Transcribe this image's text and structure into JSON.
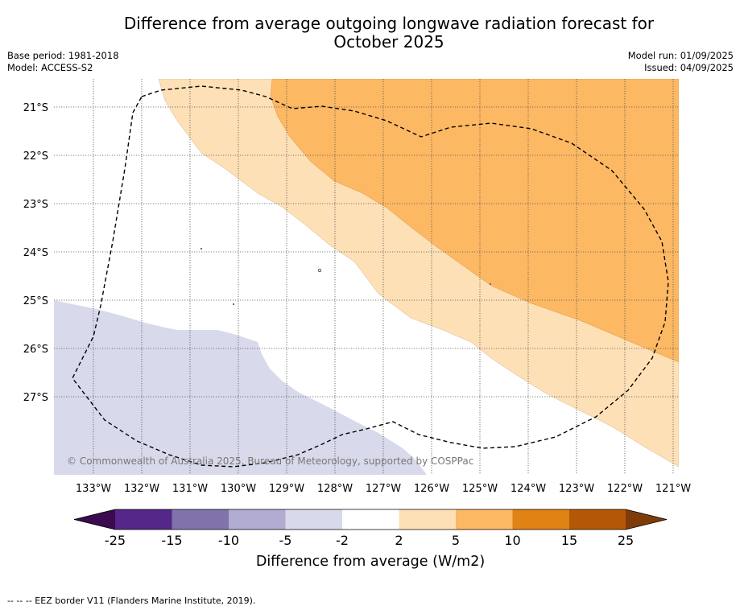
{
  "title_lines": [
    "Difference from average outgoing longwave radiation forecast for",
    "October 2025"
  ],
  "meta_left": [
    "Base period: 1981-2018",
    "Model: ACCESS-S2"
  ],
  "meta_right": [
    "Model run: 01/09/2025",
    "Issued: 04/09/2025"
  ],
  "map": {
    "lat_labels": [
      "21°S",
      "22°S",
      "23°S",
      "24°S",
      "25°S",
      "26°S",
      "27°S"
    ],
    "lon_labels": [
      "133°W",
      "132°W",
      "131°W",
      "130°W",
      "129°W",
      "128°W",
      "127°W",
      "126°W",
      "125°W",
      "124°W",
      "123°W",
      "122°W",
      "121°W"
    ],
    "copyright": "© Commonwealth of Australia 2025, Bureau of Meteorology, supported by COSPPac",
    "gridlines": true,
    "border": "EEZ border (dashed)"
  },
  "colorbar": {
    "ticks": [
      "-25",
      "-15",
      "-10",
      "-5",
      "-2",
      "2",
      "5",
      "10",
      "15",
      "25"
    ],
    "colors": [
      "#3b0a4f",
      "#542788",
      "#8073ac",
      "#b2abd2",
      "#d8daeb",
      "#ffffff",
      "#fee0b6",
      "#fdb863",
      "#e08214",
      "#b35806",
      "#7f3b08"
    ],
    "label": "Difference from average (W/m2)"
  },
  "footnote": "--  --  -- EEZ border V11 (Flanders Marine Institute, 2019)."
}
